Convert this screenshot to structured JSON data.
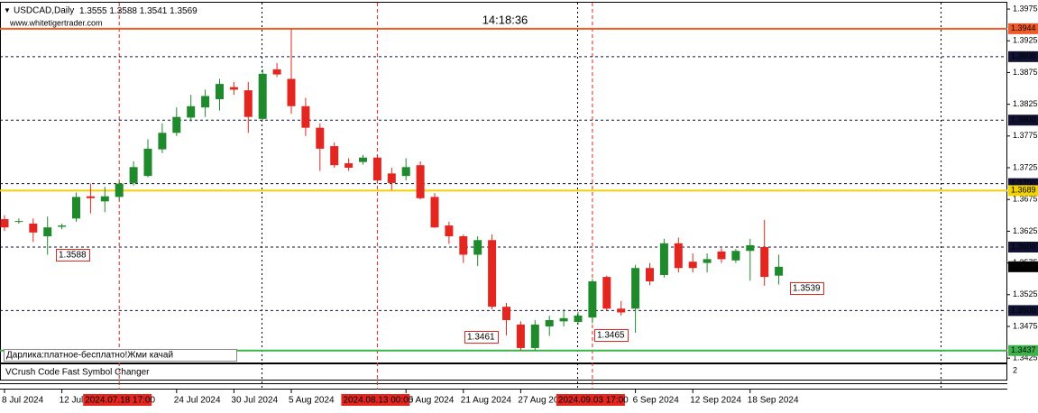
{
  "chart_data": {
    "type": "candlestick",
    "title": "USDCAD,Daily",
    "watermark": "www.whitetigertrader.com",
    "clock": "14:18:36",
    "info_label": "Дарлика:платное-бесплатно!Жми качай",
    "categories": [
      "8 Jul 2024",
      null,
      null,
      null,
      "12 Jul 2024",
      null,
      null,
      null,
      null,
      null,
      null,
      null,
      "24 Jul 2024",
      null,
      null,
      null,
      "30 Jul 2024",
      null,
      null,
      null,
      "5 Aug 2024",
      null,
      null,
      null,
      null,
      null,
      null,
      null,
      "15 Aug 2024",
      null,
      null,
      null,
      "21 Aug 2024",
      null,
      null,
      null,
      "27 Aug 2024",
      null,
      null,
      null,
      null,
      null,
      null,
      null,
      "6 Sep 2024",
      null,
      null,
      null,
      "12 Sep 2024",
      null,
      null,
      null,
      "18 Sep 2024",
      null,
      null
    ],
    "open": [
      1.3644,
      1.3641,
      1.3637,
      1.3617,
      1.3632,
      1.3645,
      1.368,
      1.3672,
      1.3679,
      1.3701,
      1.3712,
      1.3754,
      1.378,
      1.3804,
      1.382,
      1.3833,
      1.3852,
      1.3847,
      1.3802,
      1.388,
      1.3865,
      1.3822,
      1.3788,
      1.3759,
      1.3732,
      1.3734,
      1.3741,
      1.3716,
      1.3712,
      1.3729,
      1.3679,
      1.3634,
      1.3617,
      1.3588,
      1.3611,
      1.3506,
      1.3478,
      1.3441,
      1.3475,
      1.3483,
      1.3482,
      1.3489,
      1.3553,
      1.3503,
      1.3503,
      1.3567,
      1.3556,
      1.3606,
      1.3577,
      1.3575,
      1.3593,
      1.3579,
      1.3594,
      1.36,
      1.3555
    ],
    "high": [
      1.365,
      1.3645,
      1.3645,
      1.3648,
      1.3637,
      1.3686,
      1.37,
      1.3695,
      1.3703,
      1.3735,
      1.377,
      1.3795,
      1.382,
      1.384,
      1.3848,
      1.3865,
      1.386,
      1.386,
      1.388,
      1.389,
      1.3944,
      1.3835,
      1.3795,
      1.3765,
      1.374,
      1.3745,
      1.3745,
      1.3725,
      1.374,
      1.3735,
      1.3685,
      1.364,
      1.362,
      1.3617,
      1.362,
      1.3512,
      1.3483,
      1.3485,
      1.3492,
      1.3502,
      1.3498,
      1.355,
      1.3555,
      1.3515,
      1.3572,
      1.3575,
      1.3613,
      1.3615,
      1.359,
      1.359,
      1.3598,
      1.3597,
      1.3613,
      1.3643,
      1.3588
    ],
    "low": [
      1.3625,
      1.3637,
      1.3608,
      1.3588,
      1.3628,
      1.364,
      1.3653,
      1.3655,
      1.3675,
      1.3697,
      1.371,
      1.3748,
      1.3775,
      1.3798,
      1.3805,
      1.3815,
      1.384,
      1.378,
      1.38,
      1.3868,
      1.381,
      1.3775,
      1.372,
      1.3725,
      1.372,
      1.373,
      1.37,
      1.369,
      1.3705,
      1.3675,
      1.363,
      1.3605,
      1.3575,
      1.357,
      1.3502,
      1.3461,
      1.3437,
      1.3437,
      1.346,
      1.3475,
      1.3478,
      1.348,
      1.35,
      1.3492,
      1.3465,
      1.354,
      1.3552,
      1.356,
      1.356,
      1.356,
      1.3575,
      1.3575,
      1.3547,
      1.3539,
      1.3541
    ],
    "close": [
      1.3631,
      1.3641,
      1.3623,
      1.3631,
      1.3634,
      1.3679,
      1.3677,
      1.368,
      1.37,
      1.3726,
      1.3755,
      1.378,
      1.3805,
      1.3822,
      1.3838,
      1.3857,
      1.3848,
      1.3805,
      1.3873,
      1.3872,
      1.3822,
      1.3788,
      1.3755,
      1.3729,
      1.3725,
      1.3741,
      1.3705,
      1.3701,
      1.3726,
      1.3677,
      1.3631,
      1.3617,
      1.3588,
      1.3611,
      1.3506,
      1.3485,
      1.3441,
      1.3478,
      1.3485,
      1.3488,
      1.3492,
      1.3546,
      1.3503,
      1.3497,
      1.3567,
      1.3546,
      1.3606,
      1.3567,
      1.3567,
      1.3581,
      1.3581,
      1.3594,
      1.3603,
      1.3553,
      1.3569
    ],
    "up_color": "#1f8a2c",
    "down_color": "#e3261f",
    "ylim": [
      1.3421,
      1.3985
    ],
    "yticks": [
      1.3975,
      1.3925,
      1.3875,
      1.3825,
      1.3775,
      1.3725,
      1.3675,
      1.3625,
      1.3575,
      1.3525,
      1.3475,
      1.3425
    ],
    "levels": [
      {
        "value": 1.3944,
        "color": "#f05a28",
        "style": "solid"
      },
      {
        "value": 1.39,
        "label": "1.3900",
        "color": "#111133",
        "style": "dashed"
      },
      {
        "value": 1.38,
        "label": "1.3800",
        "color": "#111133",
        "style": "dashed"
      },
      {
        "value": 1.37,
        "label": "1.3700",
        "color": "#111133",
        "style": "dashed"
      },
      {
        "value": 1.3689,
        "color": "#f2d200",
        "style": "solid"
      },
      {
        "value": 1.36,
        "label": "1.3600",
        "color": "#111133",
        "style": "dashed"
      },
      {
        "value": 1.35,
        "label": "1.3500",
        "color": "#111133",
        "style": "dashed"
      },
      {
        "value": 1.3437,
        "color": "#3cb44b",
        "style": "solid"
      }
    ],
    "price_labels": [
      "1.3588",
      "1.3461",
      "1.3465",
      "1.3539"
    ],
    "time_markers": [
      "2024.07.18 17:00",
      "2024.08.13 00:00",
      "2024.09.03 17:00"
    ],
    "indicator": {
      "title": "VCrush Code Fast Symbol Changer",
      "yticks": [
        2
      ]
    }
  }
}
